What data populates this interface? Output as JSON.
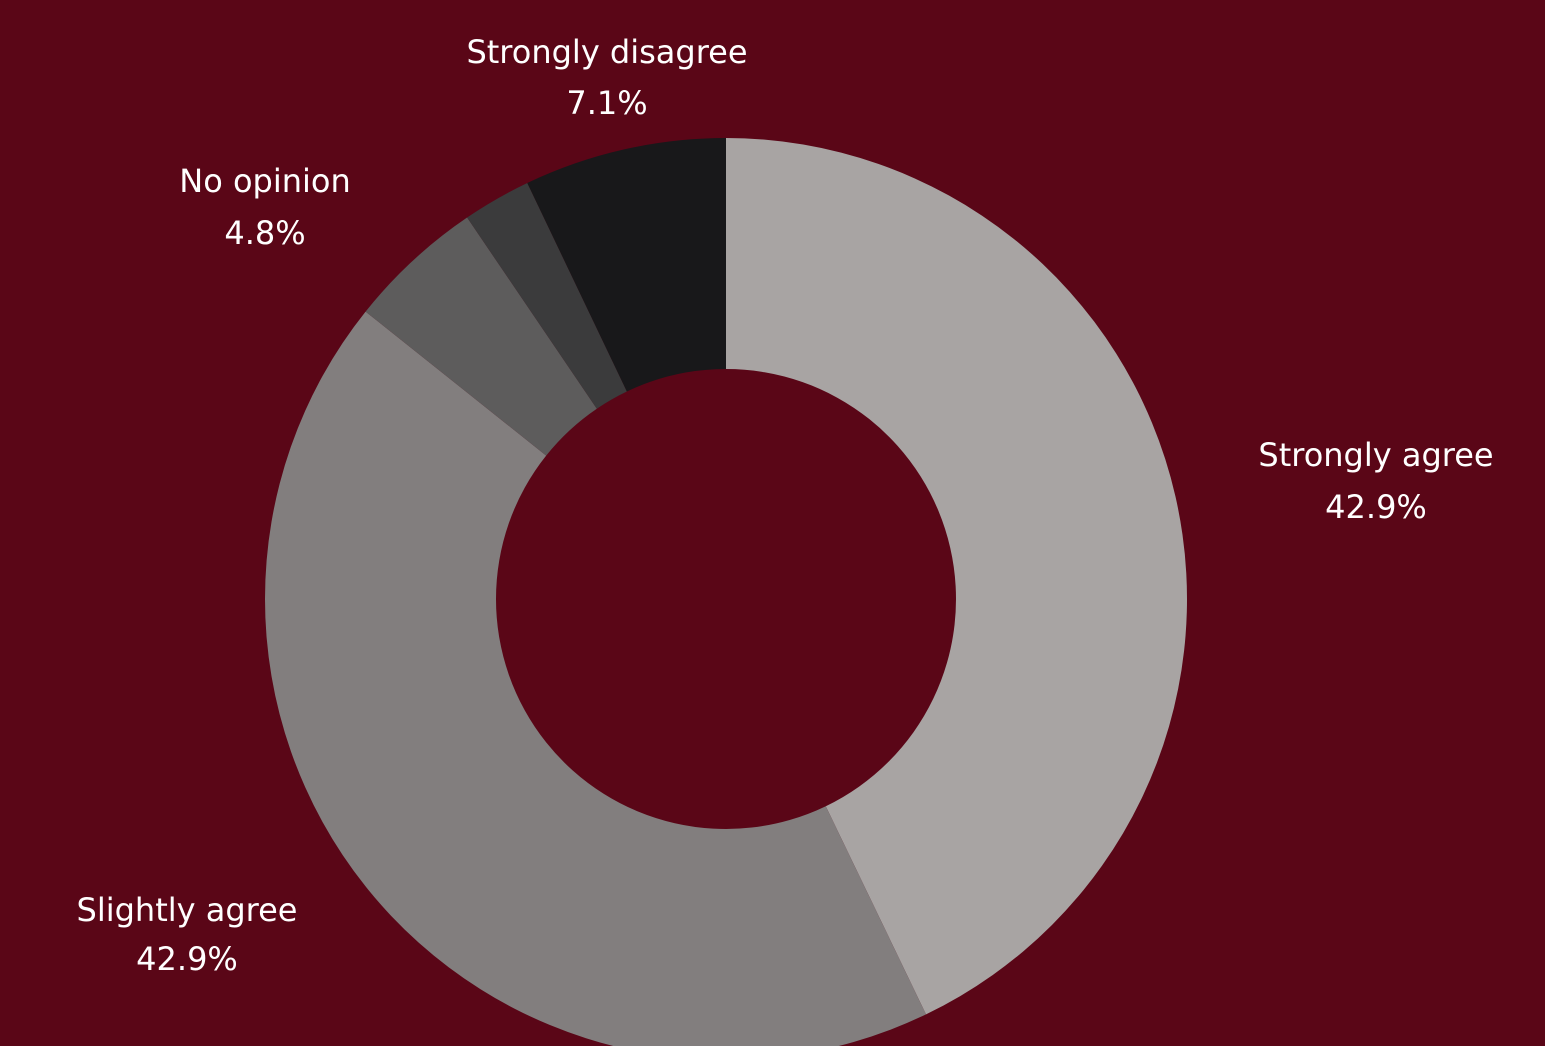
{
  "colors": {
    "background": "#5a0617"
  },
  "chart_data": {
    "type": "pie",
    "variant": "donut",
    "title": "",
    "legend": "none",
    "slices": [
      {
        "label": "Strongly agree",
        "value": 42.9,
        "value_label": "42.9%",
        "color": "#a8a4a3",
        "show_label": true
      },
      {
        "label": "Slightly agree",
        "value": 42.9,
        "value_label": "42.9%",
        "color": "#827e7e",
        "show_label": true
      },
      {
        "label": "No opinion",
        "value": 4.8,
        "value_label": "4.8%",
        "color": "#5d5c5c",
        "show_label": true
      },
      {
        "label": "",
        "value": 2.4,
        "value_label": "",
        "color": "#3b3b3c",
        "show_label": false
      },
      {
        "label": "Strongly disagree",
        "value": 7.1,
        "value_label": "7.1%",
        "color": "#18181a",
        "show_label": true
      }
    ]
  }
}
